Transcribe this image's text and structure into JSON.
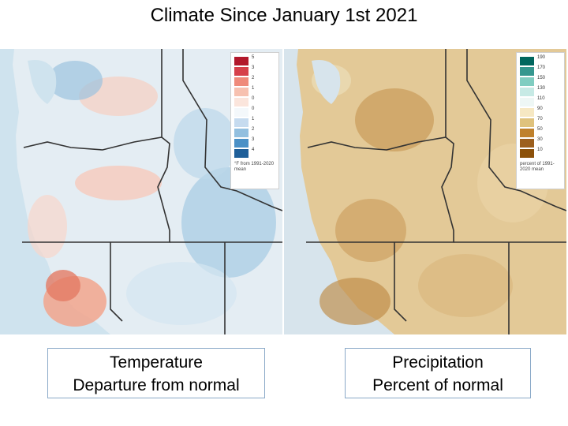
{
  "title": "Climate Since January 1st 2021",
  "temperature": {
    "caption_line1": "Temperature",
    "caption_line2": "Departure from normal",
    "legend": {
      "ticks": [
        "5",
        "3",
        "2",
        "1",
        "0",
        "0",
        "1",
        "2",
        "3",
        "4"
      ],
      "colors": [
        "#b2182b",
        "#d6404a",
        "#ef8a7a",
        "#f7c1b0",
        "#fbe5dc",
        "#f4f8fb",
        "#c6dbef",
        "#92bfdf",
        "#4a90c6",
        "#1f5f99"
      ],
      "note": "°F from 1991-2020 mean"
    },
    "land_color": "#e4edf3"
  },
  "precipitation": {
    "caption_line1": "Precipitation",
    "caption_line2": "Percent of normal",
    "legend": {
      "ticks": [
        "190",
        "170",
        "150",
        "130",
        "110",
        "90",
        "70",
        "50",
        "30",
        "10"
      ],
      "colors": [
        "#01665e",
        "#35978f",
        "#80cdc1",
        "#c7eae5",
        "#eef7f5",
        "#f6e8c3",
        "#dfc27d",
        "#bf812d",
        "#9c5f1e",
        "#8c510a"
      ],
      "note": "percent of 1991-2020 mean"
    },
    "land_color": "#e3c997"
  }
}
